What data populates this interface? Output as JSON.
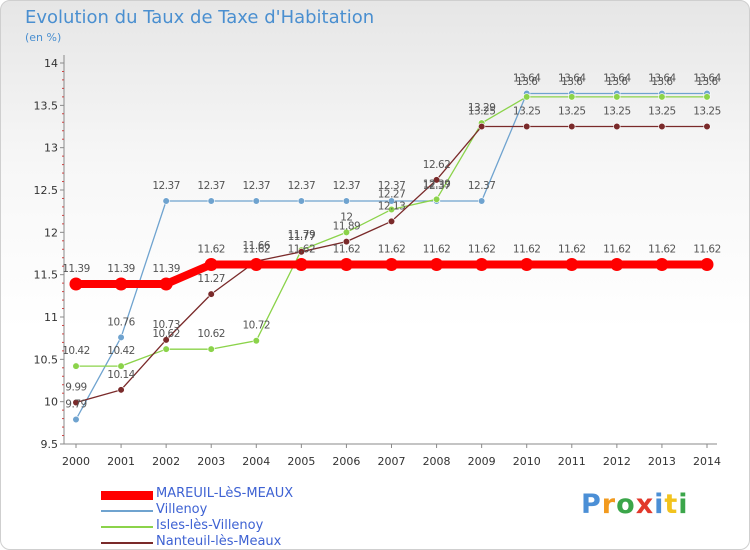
{
  "title": "Evolution du Taux de Taxe d'Habitation",
  "unit": "(en %)",
  "logo": {
    "text": "Proxiti",
    "letter_colors": [
      "#4b8fd6",
      "#f29a1e",
      "#3ba64a",
      "#e2382b",
      "#4b8fd6",
      "#f2c31e",
      "#3ba64a"
    ]
  },
  "chart_data": {
    "type": "line",
    "x": [
      2000,
      2001,
      2002,
      2003,
      2004,
      2005,
      2006,
      2007,
      2008,
      2009,
      2010,
      2011,
      2012,
      2013,
      2014
    ],
    "ylim": [
      9.5,
      14
    ],
    "yticks": [
      "9.5",
      "10",
      "10.5",
      "11",
      "11.5",
      "12",
      "12.5",
      "13",
      "13.5",
      "14"
    ],
    "grid": false,
    "legend_position": "bottom-left",
    "series": [
      {
        "name": "MAREUIL-LèS-MEAUX",
        "color": "#ff0000",
        "values": [
          11.39,
          11.39,
          11.39,
          11.62,
          11.62,
          11.62,
          11.62,
          11.62,
          11.62,
          11.62,
          11.62,
          11.62,
          11.62,
          11.62,
          11.62
        ],
        "labels": [
          "11.39",
          "11.39",
          "11.39",
          "11.62",
          "11.62",
          "11.62",
          "11.62",
          "11.62",
          "11.62",
          "11.62",
          "11.62",
          "11.62",
          "11.62",
          "11.62",
          "11.62"
        ]
      },
      {
        "name": "Villenoy",
        "color": "#6fa3cf",
        "values": [
          9.79,
          10.76,
          12.37,
          12.37,
          12.37,
          12.37,
          12.37,
          12.37,
          12.37,
          12.37,
          13.64,
          13.64,
          13.64,
          13.64,
          13.64
        ],
        "labels": [
          "9.79",
          "10.76",
          "12.37",
          "12.37",
          "12.37",
          "12.37",
          "12.37",
          "12.37",
          "12.37",
          "12.37",
          "13.64",
          "13.64",
          "13.64",
          "13.64",
          "13.64"
        ]
      },
      {
        "name": "Isles-lès-Villenoy",
        "color": "#8bd34a",
        "values": [
          10.42,
          10.42,
          10.62,
          10.62,
          10.72,
          11.79,
          12,
          12.27,
          12.39,
          13.29,
          13.6,
          13.6,
          13.6,
          13.6,
          13.6
        ],
        "labels": [
          "10.42",
          "10.42",
          "10.62",
          "10.62",
          "10.72",
          "11.79",
          "12",
          "12.27",
          "12.39",
          "13.29",
          "13.6",
          "13.6",
          "13.6",
          "13.6",
          "13.6"
        ]
      },
      {
        "name": "Nanteuil-lès-Meaux",
        "color": "#7a2a2a",
        "values": [
          9.99,
          10.14,
          10.73,
          11.27,
          11.66,
          11.77,
          11.89,
          12.13,
          12.62,
          13.25,
          13.25,
          13.25,
          13.25,
          13.25,
          13.25
        ],
        "labels": [
          "9.99",
          "10.14",
          "10.73",
          "11.27",
          "11.66",
          "11.77",
          "11.89",
          "12.13",
          "12.62",
          "13.25",
          "13.25",
          "13.25",
          "13.25",
          "13.25",
          "13.25"
        ]
      }
    ]
  }
}
